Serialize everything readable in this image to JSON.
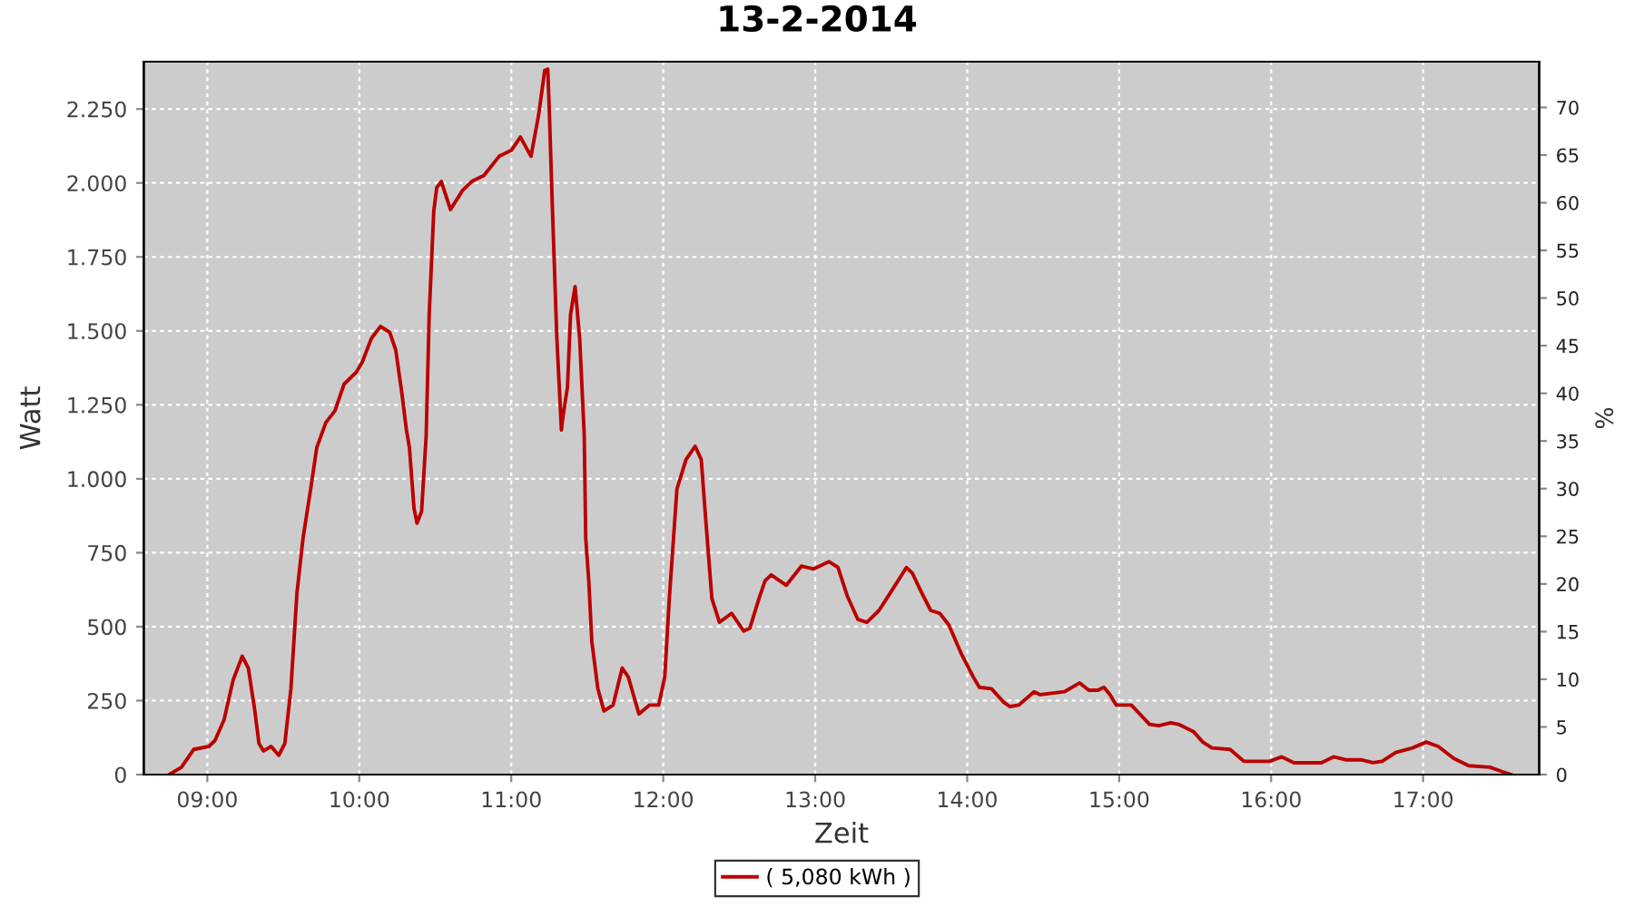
{
  "chart_data": {
    "type": "line",
    "title": "13-2-2014",
    "xlabel": "Zeit",
    "ylabel": "Watt",
    "y2label": "%",
    "x": [
      8.75,
      8.83,
      8.91,
      9.01,
      9.05,
      9.11,
      9.17,
      9.23,
      9.27,
      9.31,
      9.34,
      9.37,
      9.42,
      9.47,
      9.51,
      9.55,
      9.59,
      9.63,
      9.68,
      9.72,
      9.78,
      9.84,
      9.9,
      9.98,
      10.02,
      10.08,
      10.14,
      10.2,
      10.24,
      10.28,
      10.31,
      10.33,
      10.36,
      10.38,
      10.41,
      10.44,
      10.46,
      10.49,
      10.51,
      10.54,
      10.6,
      10.68,
      10.74,
      10.82,
      10.92,
      11.0,
      11.06,
      11.13,
      11.18,
      11.22,
      11.24,
      11.25,
      11.27,
      11.3,
      11.33,
      11.34,
      11.37,
      11.39,
      11.42,
      11.45,
      11.48,
      11.49,
      11.51,
      11.53,
      11.57,
      11.61,
      11.67,
      11.73,
      11.77,
      11.84,
      11.91,
      11.97,
      12.01,
      12.04,
      12.09,
      12.15,
      12.21,
      12.25,
      12.28,
      12.32,
      12.37,
      12.45,
      12.53,
      12.57,
      12.63,
      12.67,
      12.71,
      12.81,
      12.91,
      12.99,
      13.09,
      13.15,
      13.21,
      13.28,
      13.34,
      13.42,
      13.52,
      13.6,
      13.64,
      13.7,
      13.76,
      13.82,
      13.88,
      13.96,
      14.04,
      14.08,
      14.16,
      14.24,
      14.28,
      14.34,
      14.44,
      14.48,
      14.64,
      14.74,
      14.8,
      14.86,
      14.9,
      14.94,
      14.98,
      15.08,
      15.2,
      15.26,
      15.34,
      15.39,
      15.49,
      15.55,
      15.61,
      15.73,
      15.82,
      15.99,
      16.07,
      16.15,
      16.33,
      16.41,
      16.49,
      16.59,
      16.67,
      16.73,
      16.82,
      16.93,
      17.02,
      17.1,
      17.2,
      17.3,
      17.44,
      17.52,
      17.58
    ],
    "series": [
      {
        "name": "( 5,080 kWh )",
        "color": "#bb0000",
        "values": [
          0,
          25,
          85,
          95,
          115,
          185,
          320,
          400,
          360,
          225,
          105,
          80,
          95,
          65,
          105,
          290,
          615,
          800,
          965,
          1105,
          1190,
          1230,
          1320,
          1360,
          1395,
          1475,
          1515,
          1495,
          1435,
          1290,
          1165,
          1105,
          900,
          850,
          890,
          1145,
          1555,
          1905,
          1985,
          2005,
          1910,
          1975,
          2005,
          2025,
          2090,
          2110,
          2155,
          2090,
          2230,
          2380,
          2385,
          2250,
          1925,
          1475,
          1165,
          1210,
          1310,
          1555,
          1650,
          1475,
          1150,
          800,
          655,
          450,
          290,
          215,
          235,
          360,
          330,
          205,
          235,
          235,
          330,
          595,
          965,
          1065,
          1110,
          1065,
          860,
          595,
          515,
          545,
          485,
          495,
          595,
          655,
          675,
          640,
          705,
          695,
          720,
          700,
          605,
          525,
          515,
          555,
          635,
          700,
          680,
          615,
          555,
          545,
          505,
          410,
          330,
          295,
          290,
          245,
          230,
          235,
          280,
          270,
          280,
          310,
          285,
          285,
          295,
          270,
          235,
          235,
          170,
          165,
          175,
          170,
          145,
          110,
          90,
          85,
          45,
          45,
          60,
          40,
          40,
          60,
          50,
          50,
          40,
          45,
          75,
          90,
          110,
          95,
          55,
          30,
          25,
          10,
          0
        ]
      }
    ],
    "xlim": [
      8.582,
      17.764
    ],
    "xticks": [
      {
        "value": 9,
        "label": "09:00"
      },
      {
        "value": 10,
        "label": "10:00"
      },
      {
        "value": 11,
        "label": "11:00"
      },
      {
        "value": 12,
        "label": "12:00"
      },
      {
        "value": 13,
        "label": "13:00"
      },
      {
        "value": 14,
        "label": "14:00"
      },
      {
        "value": 15,
        "label": "15:00"
      },
      {
        "value": 16,
        "label": "16:00"
      },
      {
        "value": 17,
        "label": "17:00"
      }
    ],
    "ylim": [
      0,
      2410
    ],
    "yticks": [
      0,
      250,
      500,
      750,
      {
        "value": 1000,
        "label": "1.000"
      },
      {
        "value": 1250,
        "label": "1.250"
      },
      {
        "value": 1500,
        "label": "1.500"
      },
      {
        "value": 1750,
        "label": "1.750"
      },
      {
        "value": 2000,
        "label": "2.000"
      },
      {
        "value": 2250,
        "label": "2.250"
      }
    ],
    "y2lim": [
      0,
      74.8
    ],
    "y2ticks": [
      0,
      5,
      10,
      15,
      20,
      25,
      30,
      35,
      40,
      45,
      50,
      55,
      60,
      65,
      70
    ],
    "grid": true,
    "legend": "bottom",
    "line_style": "solid"
  }
}
